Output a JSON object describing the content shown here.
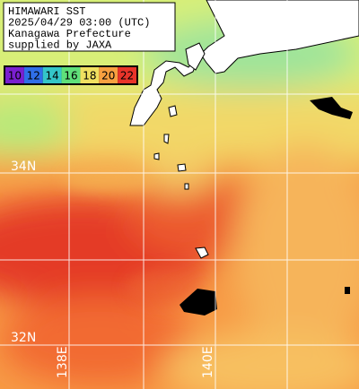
{
  "header": {
    "lines": [
      "HIMAWARI SST",
      "2025/04/29 03:00 (UTC)",
      "Kanagawa Prefecture",
      "supplied by JAXA"
    ]
  },
  "colorbar": {
    "labels": [
      "10",
      "12",
      "14",
      "16",
      "18",
      "20",
      "22"
    ],
    "colors": [
      "#7a1fd0",
      "#2f6ee8",
      "#34c6c8",
      "#5fe07a",
      "#f0e060",
      "#f7a040",
      "#e8342a"
    ]
  },
  "grid": {
    "latitudes": [
      "34N",
      "32N"
    ],
    "longitudes": [
      "138E",
      "140E"
    ]
  }
}
